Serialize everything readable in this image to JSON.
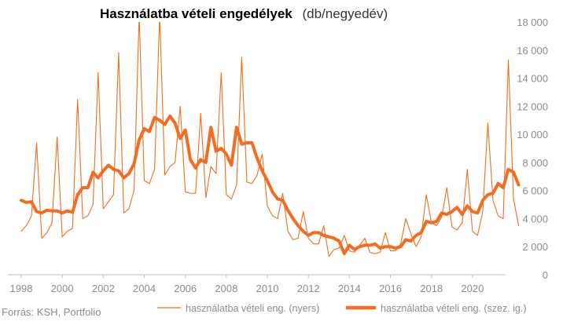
{
  "chart_data": {
    "type": "line",
    "title": "Használatba vételi engedélyek",
    "subtitle": "(db/negyedév)",
    "source": "Forrás: KSH, Portfolio",
    "x_start_year": 1998,
    "x_ticks": [
      "1998",
      "2000",
      "2002",
      "2004",
      "2006",
      "2008",
      "2010",
      "2012",
      "2014",
      "2016",
      "2018",
      "2020"
    ],
    "y_ticks": [
      "0",
      "2 000",
      "4 000",
      "6 000",
      "8 000",
      "10 000",
      "12 000",
      "14 000",
      "16 000",
      "18 000"
    ],
    "ylim": [
      0,
      18000
    ],
    "y_axis_position": "right",
    "grid": false,
    "legend_position": "bottom",
    "colors": {
      "raw": "#f26d21",
      "sa": "#f26d21",
      "text": "#8c8c8c",
      "axis": "#bfbfbf"
    },
    "series": [
      {
        "name": "használatba vételi eng. (nyers)",
        "line_width": "thin",
        "values": [
          3100,
          3500,
          4200,
          9400,
          2600,
          3000,
          3700,
          9800,
          2700,
          3100,
          3300,
          12500,
          4000,
          4200,
          5000,
          14400,
          4700,
          5200,
          5700,
          15800,
          4400,
          4700,
          6000,
          18500,
          6700,
          6500,
          7500,
          18500,
          7100,
          7700,
          8000,
          12000,
          5900,
          5800,
          5800,
          11500,
          5500,
          7700,
          7200,
          14400,
          5700,
          5400,
          6400,
          15500,
          6600,
          6500,
          7100,
          8600,
          4900,
          4200,
          4000,
          5800,
          3100,
          2500,
          2600,
          4500,
          2600,
          2200,
          2200,
          3500,
          1300,
          1800,
          1900,
          2800,
          1700,
          1600,
          2100,
          2600,
          1600,
          1500,
          1600,
          3000,
          1700,
          1700,
          2200,
          4000,
          2900,
          2000,
          2700,
          5700,
          3700,
          3500,
          4100,
          6200,
          3400,
          3200,
          3700,
          7500,
          3100,
          2800,
          4500,
          10800,
          5300,
          4200,
          4000,
          15300,
          5400,
          3500
        ]
      },
      {
        "name": "használatba vételi eng. (szez. ig.)",
        "line_width": "thick",
        "values": [
          5300,
          5150,
          5200,
          4500,
          4400,
          4600,
          4550,
          4550,
          4400,
          4550,
          4450,
          5700,
          6200,
          6200,
          7300,
          6900,
          7400,
          7800,
          7500,
          7400,
          6900,
          7200,
          7900,
          9600,
          10400,
          10200,
          11200,
          11000,
          10700,
          11300,
          10800,
          9700,
          10300,
          8200,
          7600,
          8200,
          8000,
          10500,
          8800,
          9000,
          8600,
          7800,
          10500,
          9300,
          9400,
          9400,
          8300,
          7400,
          6700,
          5900,
          5400,
          5300,
          4600,
          4000,
          3500,
          3100,
          2800,
          3000,
          3000,
          2800,
          2700,
          2600,
          2400,
          1500,
          2100,
          1800,
          2000,
          2100,
          2100,
          2200,
          1900,
          2000,
          2000,
          1900,
          2000,
          2500,
          2400,
          2800,
          3000,
          3800,
          3700,
          3800,
          4400,
          4300,
          4500,
          4800,
          4300,
          4900,
          4500,
          4400,
          5300,
          5700,
          5800,
          6500,
          6200,
          7500,
          7300,
          6400
        ]
      }
    ]
  }
}
